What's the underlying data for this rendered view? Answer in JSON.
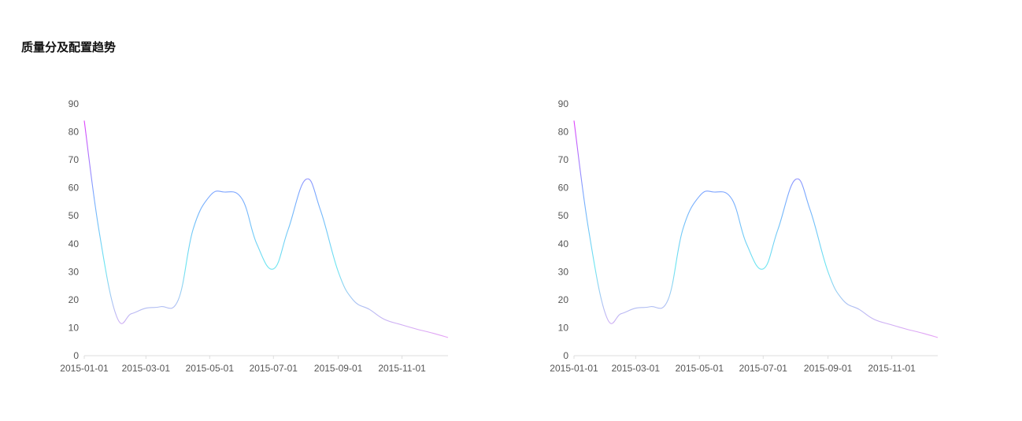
{
  "page": {
    "title": "质量分及配置趋势"
  },
  "chart_data": [
    {
      "type": "line",
      "title": "",
      "xlabel": "",
      "ylabel": "",
      "x": [
        "2015-01-01",
        "2015-01-15",
        "2015-02-01",
        "2015-02-15",
        "2015-03-01",
        "2015-03-15",
        "2015-04-01",
        "2015-04-15",
        "2015-05-01",
        "2015-05-15",
        "2015-06-01",
        "2015-06-15",
        "2015-07-01",
        "2015-07-15",
        "2015-08-01",
        "2015-08-15",
        "2015-09-01",
        "2015-09-15",
        "2015-10-01",
        "2015-10-15",
        "2015-11-01",
        "2015-11-15",
        "2015-12-01",
        "2015-12-15"
      ],
      "series": [
        {
          "values": [
            84,
            45,
            14,
            15,
            17,
            17.5,
            20,
            45,
            57,
            58.5,
            56,
            40,
            31,
            45,
            63,
            52,
            30,
            20,
            16.5,
            13,
            11,
            9.5,
            8,
            6.5
          ]
        }
      ],
      "x_ticks": [
        "2015-01-01",
        "2015-03-01",
        "2015-05-01",
        "2015-07-01",
        "2015-09-01",
        "2015-11-01"
      ],
      "y_ticks": [
        0,
        10,
        20,
        30,
        40,
        50,
        60,
        70,
        80,
        90
      ],
      "ylim": [
        0,
        90
      ],
      "grid": false,
      "line_gradient": [
        "#e040fb",
        "#7aa6ff",
        "#6ae6f0",
        "#e9a0f5"
      ]
    },
    {
      "type": "line",
      "title": "",
      "xlabel": "",
      "ylabel": "",
      "x": [
        "2015-01-01",
        "2015-01-15",
        "2015-02-01",
        "2015-02-15",
        "2015-03-01",
        "2015-03-15",
        "2015-04-01",
        "2015-04-15",
        "2015-05-01",
        "2015-05-15",
        "2015-06-01",
        "2015-06-15",
        "2015-07-01",
        "2015-07-15",
        "2015-08-01",
        "2015-08-15",
        "2015-09-01",
        "2015-09-15",
        "2015-10-01",
        "2015-10-15",
        "2015-11-01",
        "2015-11-15",
        "2015-12-01",
        "2015-12-15"
      ],
      "series": [
        {
          "values": [
            84,
            45,
            14,
            15,
            17,
            17.5,
            20,
            45,
            57,
            58.5,
            56,
            40,
            31,
            45,
            63,
            52,
            30,
            20,
            16.5,
            13,
            11,
            9.5,
            8,
            6.5
          ]
        }
      ],
      "x_ticks": [
        "2015-01-01",
        "2015-03-01",
        "2015-05-01",
        "2015-07-01",
        "2015-09-01",
        "2015-11-01"
      ],
      "y_ticks": [
        0,
        10,
        20,
        30,
        40,
        50,
        60,
        70,
        80,
        90
      ],
      "ylim": [
        0,
        90
      ],
      "grid": false,
      "line_gradient": [
        "#e040fb",
        "#7aa6ff",
        "#6ae6f0",
        "#e9a0f5"
      ]
    }
  ]
}
